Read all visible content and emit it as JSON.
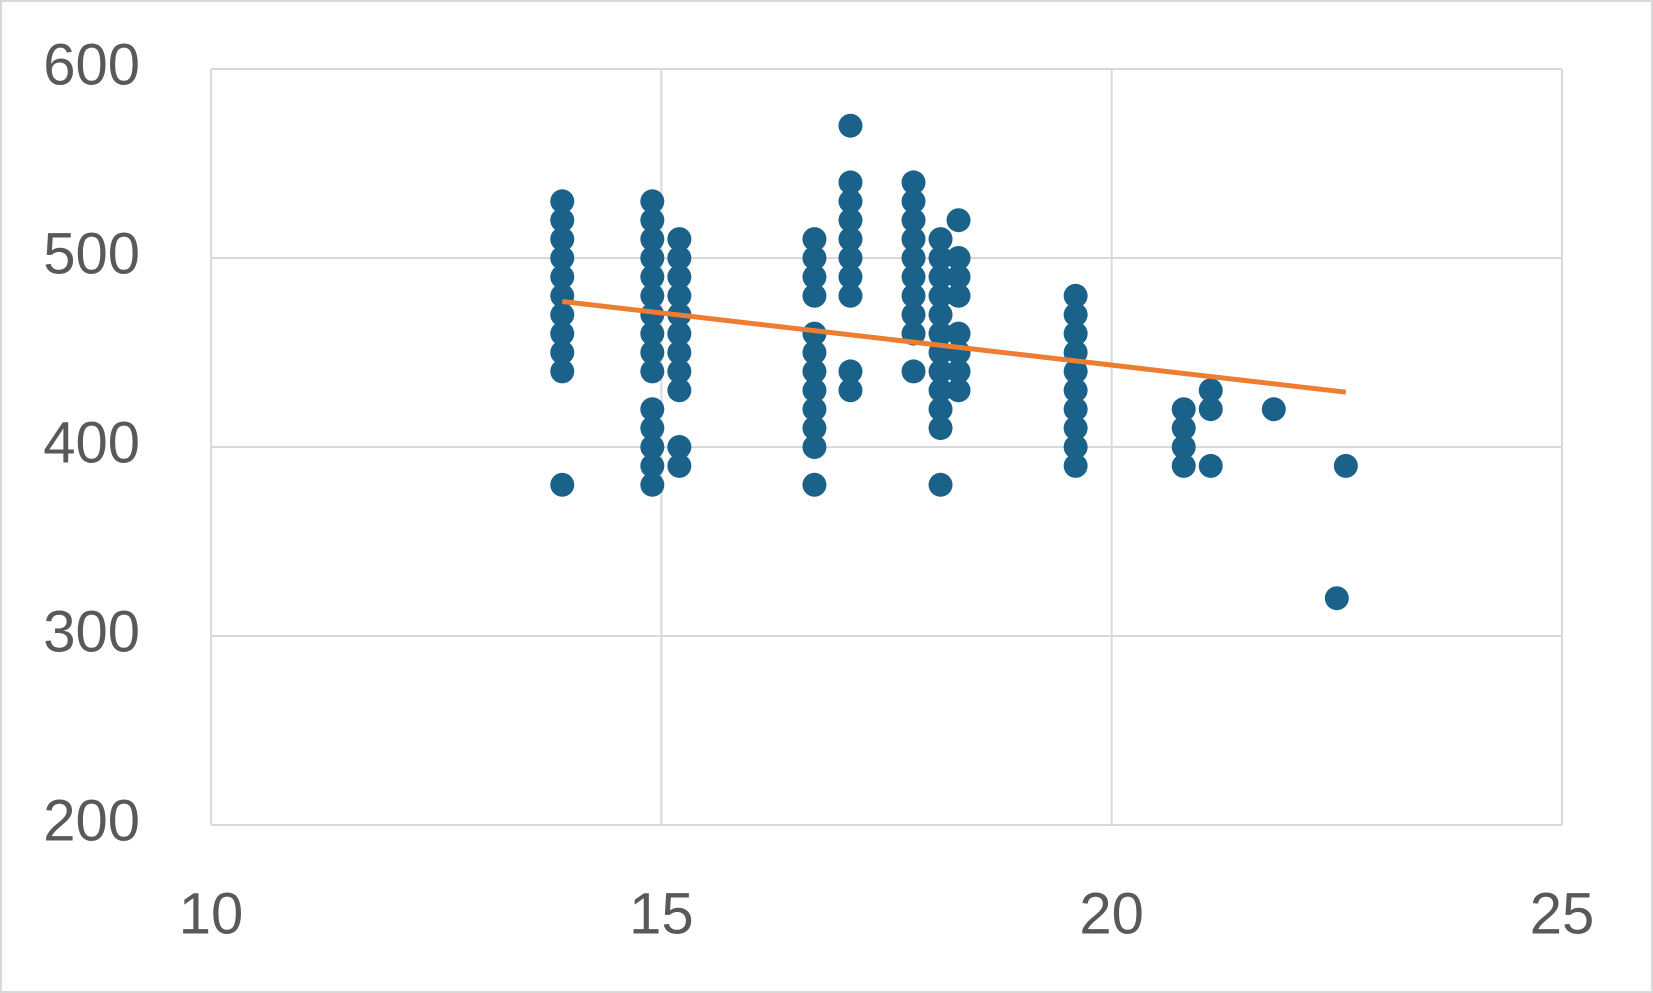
{
  "chart_data": {
    "type": "scatter",
    "series": [
      {
        "color": "#1a6289",
        "x": [
          13.9,
          13.9,
          13.9,
          13.9,
          13.9,
          13.9,
          13.9,
          13.9,
          13.9,
          13.9,
          13.9,
          14.9,
          14.9,
          14.9,
          14.9,
          14.9,
          14.9,
          14.9,
          14.9,
          14.9,
          14.9,
          14.9,
          14.9,
          14.9,
          14.9,
          14.9,
          15.2,
          15.2,
          15.2,
          15.2,
          15.2,
          15.2,
          15.2,
          15.2,
          15.2,
          15.2,
          15.2,
          16.7,
          16.7,
          16.7,
          16.7,
          16.7,
          16.7,
          16.7,
          16.7,
          16.7,
          16.7,
          16.7,
          16.7,
          17.1,
          17.1,
          17.1,
          17.1,
          17.1,
          17.1,
          17.1,
          17.1,
          17.1,
          17.1,
          17.8,
          17.8,
          17.8,
          17.8,
          17.8,
          17.8,
          17.8,
          17.8,
          17.8,
          17.8,
          18.1,
          18.1,
          18.1,
          18.1,
          18.1,
          18.1,
          18.1,
          18.1,
          18.1,
          18.1,
          18.1,
          18.1,
          18.3,
          18.3,
          18.3,
          18.3,
          18.3,
          18.3,
          18.3,
          18.3,
          19.6,
          19.6,
          19.6,
          19.6,
          19.6,
          19.6,
          19.6,
          19.6,
          19.6,
          19.6,
          20.8,
          20.8,
          20.8,
          20.8,
          21.1,
          21.1,
          21.1,
          21.8,
          22.5,
          22.6
        ],
        "y": [
          530,
          520,
          510,
          500,
          490,
          480,
          470,
          460,
          450,
          440,
          380,
          530,
          520,
          510,
          500,
          490,
          480,
          470,
          460,
          450,
          440,
          420,
          410,
          400,
          390,
          380,
          510,
          500,
          490,
          480,
          470,
          460,
          450,
          440,
          430,
          400,
          390,
          510,
          500,
          490,
          480,
          460,
          450,
          440,
          430,
          420,
          410,
          400,
          380,
          570,
          540,
          530,
          520,
          510,
          500,
          490,
          480,
          440,
          430,
          540,
          530,
          520,
          510,
          500,
          490,
          480,
          470,
          460,
          440,
          510,
          500,
          490,
          480,
          470,
          460,
          450,
          440,
          430,
          420,
          410,
          380,
          520,
          500,
          490,
          480,
          460,
          450,
          440,
          430,
          480,
          470,
          460,
          450,
          440,
          430,
          420,
          410,
          400,
          390,
          420,
          410,
          400,
          390,
          430,
          420,
          390,
          420,
          320,
          390
        ]
      }
    ],
    "trendline": {
      "color": "#ed7d31",
      "x": [
        13.9,
        22.6
      ],
      "y": [
        477,
        429
      ]
    },
    "xlim": [
      10,
      25
    ],
    "xticks": [
      10,
      15,
      20,
      25
    ],
    "ylim": [
      200,
      600
    ],
    "yticks": [
      200,
      300,
      400,
      500,
      600
    ],
    "grid": true
  }
}
